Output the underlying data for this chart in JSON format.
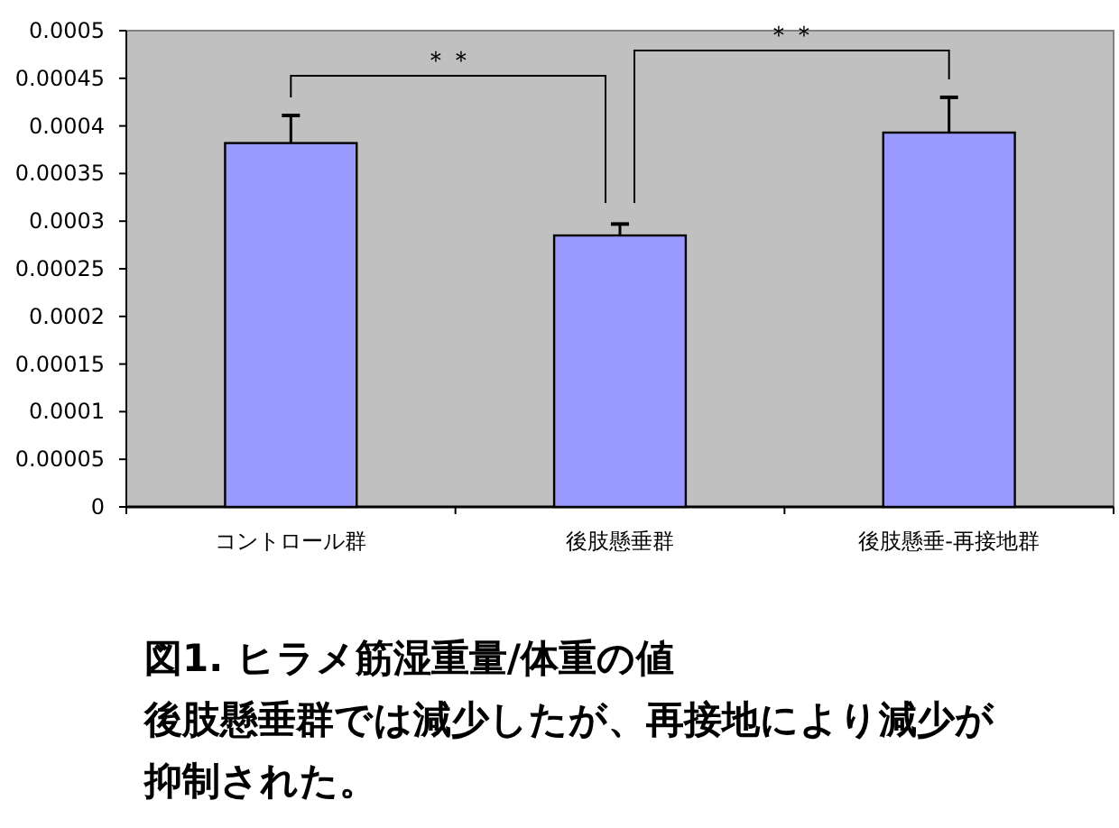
{
  "chart_data": {
    "type": "bar",
    "title": "図1. ヒラメ筋湿重量/体重の値",
    "subtitle": "後肢懸垂群では減少したが、再接地により減少が抑制された。",
    "categories": [
      "コントロール群",
      "後肢懸垂群",
      "後肢懸垂-再接地群"
    ],
    "values": [
      0.000382,
      0.000285,
      0.000393
    ],
    "errors": [
      [
        0.000382,
        0.000411
      ],
      [
        0.000285,
        0.000297
      ],
      [
        0.000393,
        0.00043
      ]
    ],
    "color": "#9999ff",
    "ylim": [
      0,
      0.0005
    ],
    "yticks": [
      0,
      {
        "value": 5e-05,
        "label": "0.00005"
      },
      0.0001,
      {
        "value": 0.00015,
        "label": "0.00015"
      },
      0.0002,
      {
        "value": 0.00025,
        "label": "0.00025"
      },
      0.0003,
      {
        "value": 0.00035,
        "label": "0.00035"
      },
      0.0004,
      {
        "value": 0.00045,
        "label": "0.00045"
      },
      0.0005
    ],
    "annotations": [
      "＊＊",
      "＊＊"
    ],
    "grid": false
  }
}
